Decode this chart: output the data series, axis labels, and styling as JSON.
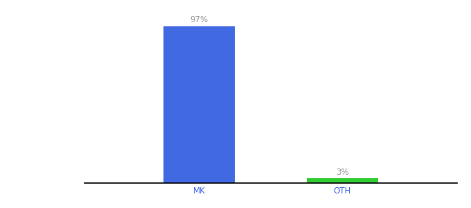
{
  "categories": [
    "MK",
    "OTH"
  ],
  "values": [
    97,
    3
  ],
  "bar_colors": [
    "#4169e1",
    "#32cd32"
  ],
  "labels": [
    "97%",
    "3%"
  ],
  "label_color": "#999999",
  "ylim": [
    0,
    108
  ],
  "background_color": "#ffffff",
  "bar_width": 0.5,
  "label_fontsize": 8.5,
  "tick_fontsize": 8.5,
  "tick_color": "#4169e1"
}
